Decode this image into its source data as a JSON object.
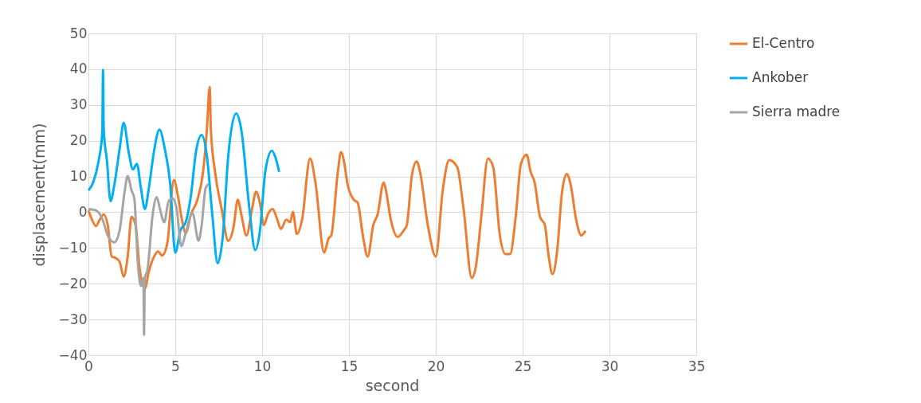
{
  "chart_data": {
    "type": "line",
    "xlabel": "second",
    "ylabel": "displacement(mm)",
    "xlim": [
      0,
      35
    ],
    "ylim": [
      -40,
      50
    ],
    "xticks": [
      0,
      5,
      10,
      15,
      20,
      25,
      30,
      35
    ],
    "yticks": [
      -40,
      -30,
      -20,
      -10,
      0,
      10,
      20,
      30,
      40,
      50
    ],
    "grid": true,
    "legend": "right",
    "marker": "none",
    "line_style": "solid",
    "series": [
      {
        "name": "El-Centro",
        "color": "#ed7d31",
        "x": [
          0,
          0.2,
          0.43,
          0.66,
          0.88,
          1.11,
          1.34,
          1.57,
          1.8,
          2.03,
          2.26,
          2.48,
          2.71,
          2.94,
          3.25,
          3.48,
          3.78,
          4.01,
          4.24,
          4.54,
          4.92,
          5.15,
          5.38,
          5.6,
          5.9,
          6.3,
          6.6,
          6.82,
          6.98,
          7.05,
          7.29,
          7.67,
          8.05,
          8.35,
          8.6,
          8.8,
          9.1,
          9.42,
          9.65,
          9.88,
          10.1,
          10.33,
          10.6,
          10.87,
          11.08,
          11.39,
          11.62,
          11.77,
          12.0,
          12.3,
          12.76,
          13.07,
          13.57,
          13.83,
          13.98,
          14.36,
          14.54,
          14.74,
          14.9,
          15.27,
          15.5,
          15.8,
          16.08,
          16.4,
          16.65,
          17.0,
          17.1,
          17.41,
          17.8,
          18.17,
          18.33,
          18.63,
          18.9,
          19.09,
          19.55,
          20.0,
          20.4,
          20.77,
          21.23,
          21.6,
          22.07,
          22.3,
          22.62,
          23.0,
          23.3,
          23.69,
          24.0,
          24.28,
          24.6,
          24.9,
          25.23,
          25.46,
          25.69,
          26.0,
          26.28,
          26.5,
          26.72,
          27.0,
          27.26,
          27.54,
          27.77,
          28.08,
          28.38,
          28.62
        ],
        "values": [
          0.5,
          -2,
          -3.9,
          -2,
          -0.6,
          -3.6,
          -12.4,
          -12.8,
          -13.9,
          -18,
          -12.4,
          -1.3,
          -3.6,
          -15.4,
          -21.3,
          -16.5,
          -12.4,
          -11,
          -12.1,
          -8.7,
          9,
          4.6,
          -2,
          -5.8,
          -0.6,
          3.9,
          11.3,
          23.1,
          35,
          23.1,
          11.3,
          0.9,
          -8,
          -4.3,
          3.5,
          -0.6,
          -6.5,
          0.9,
          5.7,
          2.4,
          -3.6,
          -0.6,
          0.9,
          -2,
          -4.7,
          -2.1,
          -2.8,
          0.1,
          -6.1,
          -2.1,
          15,
          8.3,
          -11.3,
          -7.3,
          -6.5,
          11.3,
          16.8,
          13.5,
          8.3,
          3.5,
          2.7,
          -6.5,
          -12.4,
          -3.6,
          -0.6,
          8.3,
          6.8,
          -2.1,
          -6.9,
          -5,
          -3.6,
          10.5,
          14.2,
          11.3,
          -3.9,
          -12.4,
          6.1,
          14.6,
          12.7,
          0.9,
          -18.4,
          -15.4,
          -1.3,
          15,
          12.7,
          -6.5,
          -11.7,
          -11.7,
          -1.3,
          13.5,
          16.1,
          11.3,
          8.3,
          -1.3,
          -3.6,
          -12.4,
          -17.3,
          -10.2,
          5.3,
          10.7,
          7.6,
          -2.1,
          -6.5,
          -5.2
        ]
      },
      {
        "name": "Ankober",
        "color": "#00b0f0",
        "x": [
          0,
          0.27,
          0.58,
          0.8,
          0.84,
          0.88,
          1.07,
          1.27,
          1.49,
          1.8,
          2.03,
          2.33,
          2.56,
          2.79,
          3.02,
          3.25,
          3.48,
          3.78,
          4.09,
          4.39,
          4.7,
          5.0,
          5.3,
          5.6,
          5.9,
          6.2,
          6.52,
          6.82,
          7.13,
          7.44,
          7.74,
          8.05,
          8.5,
          8.8,
          9.27,
          9.6,
          9.88,
          10.18,
          10.56,
          10.79,
          10.98
        ],
        "values": [
          6.1,
          8.3,
          14.2,
          22.4,
          39.8,
          23.1,
          14.2,
          3.1,
          7.6,
          17.9,
          25,
          16.4,
          12,
          13.5,
          6.8,
          0.9,
          6.8,
          17.2,
          23.1,
          17.9,
          8.3,
          -11.3,
          -5,
          -2.8,
          4.6,
          17.2,
          21.6,
          15.7,
          -0.6,
          -14.3,
          -6.5,
          15.7,
          27.6,
          23.1,
          0.9,
          -10.6,
          -5,
          11.3,
          17.2,
          15,
          11.3
        ]
      },
      {
        "name": "Sierra madre",
        "color": "#a5a5a5",
        "x": [
          0,
          0.43,
          0.81,
          1.11,
          1.49,
          1.8,
          2.07,
          2.26,
          2.48,
          2.64,
          2.84,
          3.02,
          3.17,
          3.2,
          3.25,
          3.4,
          3.7,
          3.93,
          4.12,
          4.36,
          4.62,
          4.85,
          5.08,
          5.35,
          5.6,
          5.99,
          6.34,
          6.52,
          6.75,
          6.93
        ],
        "values": [
          0.9,
          0.5,
          -2,
          -6.5,
          -8.4,
          -5,
          5.3,
          10.1,
          6.1,
          3.9,
          -13.9,
          -20.6,
          -18.4,
          -34.3,
          -18.4,
          -16.1,
          -0.6,
          4.2,
          0.9,
          -2.8,
          3.1,
          3.9,
          0.9,
          -9.5,
          -5.8,
          -0.2,
          -8,
          -3.6,
          6.8,
          7.9
        ]
      }
    ]
  }
}
